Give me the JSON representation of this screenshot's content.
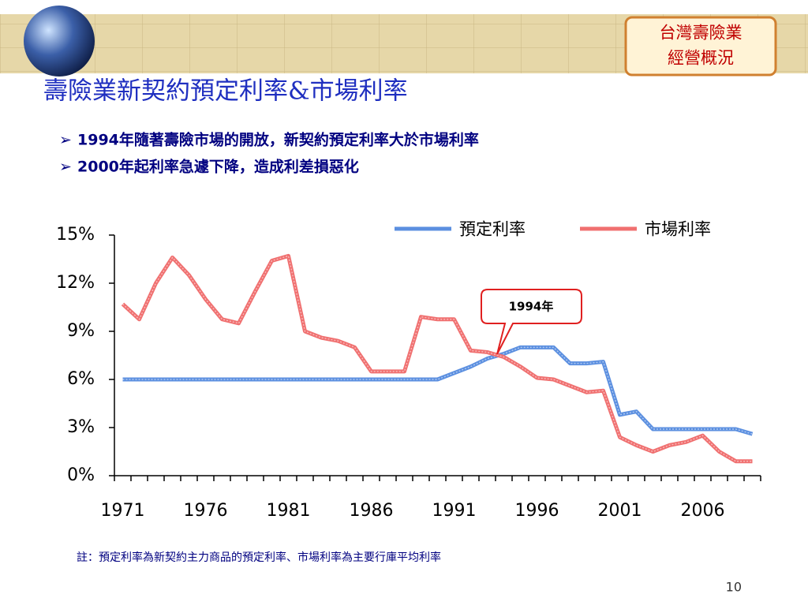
{
  "badge": {
    "lines": [
      "台灣壽險業",
      "經營概況"
    ]
  },
  "title": "壽險業新契約預定利率&市場利率",
  "bullets": [
    "1994年隨著壽險市場的開放，新契約預定利率大於市場利率",
    "2000年起利率急遽下降，造成利差損惡化"
  ],
  "chart_data": {
    "type": "line",
    "categories": [
      "1971",
      null,
      null,
      null,
      null,
      "1976",
      null,
      null,
      null,
      null,
      "1981",
      null,
      null,
      null,
      null,
      "1986",
      null,
      null,
      null,
      null,
      "1991",
      null,
      null,
      null,
      null,
      "1996",
      null,
      null,
      null,
      null,
      "2001",
      null,
      null,
      null,
      null,
      "2006",
      null,
      null,
      null
    ],
    "series": [
      {
        "name": "預定利率",
        "color": "#5b8fe0",
        "values": [
          6,
          6,
          6,
          6,
          6,
          6,
          6,
          6,
          6,
          6,
          6,
          6,
          6,
          6,
          6,
          6,
          6,
          6,
          6,
          6,
          6.4,
          6.8,
          7.3,
          7.6,
          8,
          8,
          8,
          7,
          7,
          7.1,
          3.8,
          4,
          2.9,
          2.9,
          2.9,
          2.9,
          2.9,
          2.9,
          2.6
        ]
      },
      {
        "name": "市場利率",
        "color": "#f07070",
        "values": [
          10.7,
          9.75,
          12,
          13.6,
          12.5,
          11,
          9.75,
          9.5,
          11.5,
          13.4,
          13.7,
          9,
          8.6,
          8.4,
          8,
          6.5,
          6.5,
          6.5,
          9.9,
          9.75,
          9.75,
          7.8,
          7.7,
          7.4,
          6.8,
          6.1,
          6,
          5.6,
          5.2,
          5.3,
          2.4,
          1.9,
          1.5,
          1.9,
          2.1,
          2.5,
          1.5,
          0.9,
          0.9
        ]
      }
    ],
    "ylim": [
      0,
      15
    ],
    "yticks": [
      {
        "value": 0,
        "label": "0%"
      },
      {
        "value": 3,
        "label": "3%"
      },
      {
        "value": 6,
        "label": "6%"
      },
      {
        "value": 9,
        "label": "9%"
      },
      {
        "value": 12,
        "label": "12%"
      },
      {
        "value": 15,
        "label": "15%"
      }
    ],
    "annotation": "1994年"
  },
  "footnote": "註：預定利率為新契約主力商品的預定利率、市場利率為主要行庫平均利率",
  "page_number": "10"
}
